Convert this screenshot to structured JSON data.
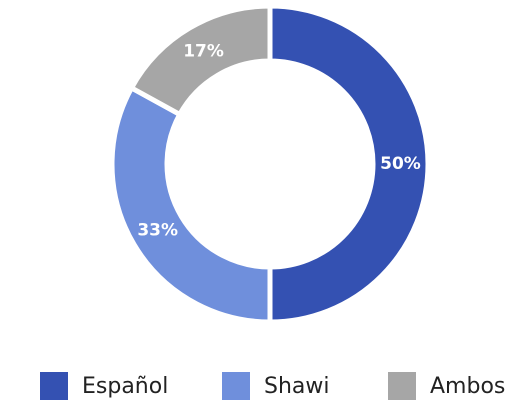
{
  "chart_data": {
    "type": "donut",
    "categories": [
      "Español",
      "Shawi",
      "Ambos"
    ],
    "values": [
      50,
      33,
      17
    ],
    "value_labels": [
      "50%",
      "33%",
      "17%"
    ],
    "colors": [
      "#3451b2",
      "#6f8fdc",
      "#a6a6a6"
    ],
    "legend": "bottom"
  }
}
